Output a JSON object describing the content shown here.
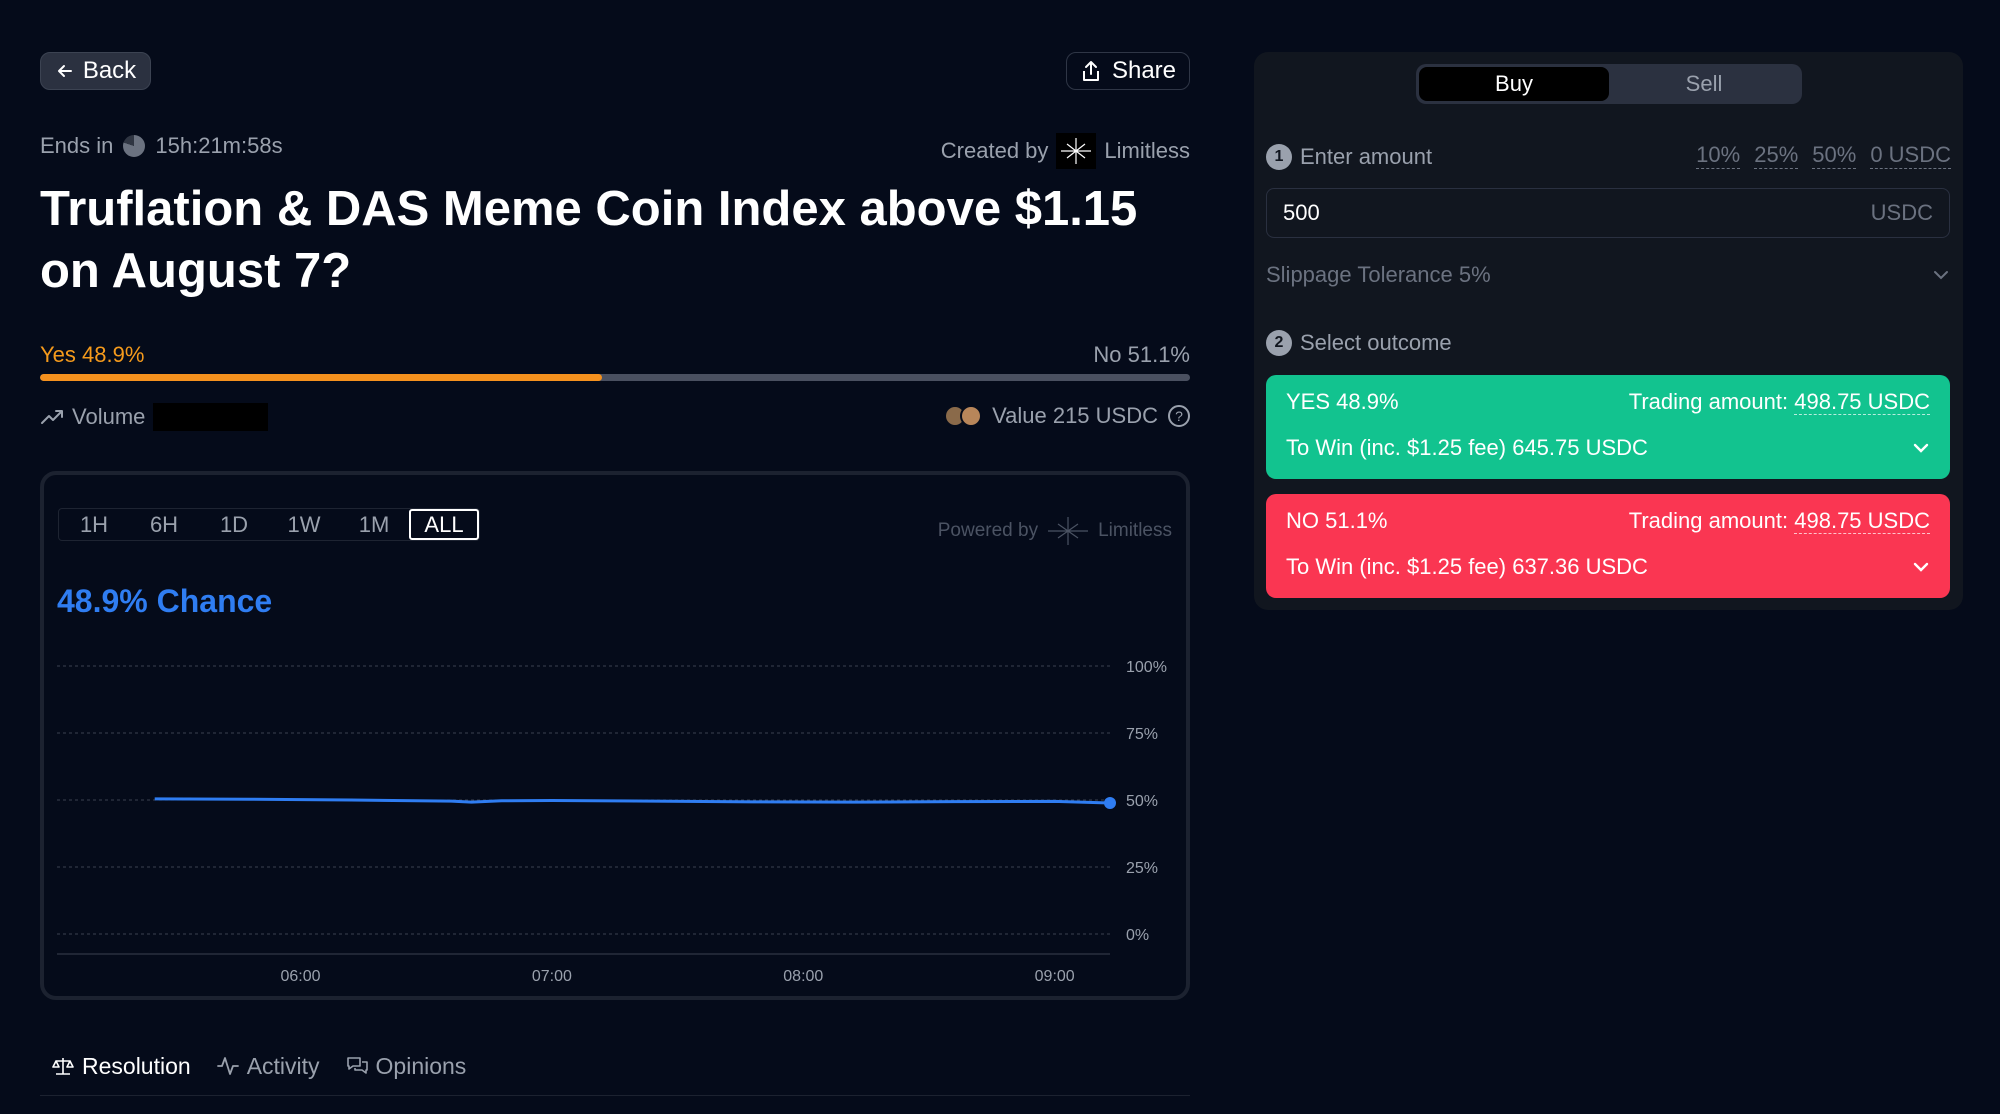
{
  "header": {
    "back_label": "Back",
    "share_label": "Share",
    "ends_in_label": "Ends in",
    "timer": "15h:21m:58s",
    "created_by_label": "Created by",
    "creator_name": "Limitless"
  },
  "market": {
    "title": "Truflation & DAS Meme Coin Index above $1.15 on August 7?",
    "yes_label": "Yes 48.9%",
    "no_label": "No 51.1%",
    "yes_probability": 48.9,
    "volume_label": "Volume",
    "value_label": "Value 215 USDC"
  },
  "chart": {
    "range_tabs": [
      "1H",
      "6H",
      "1D",
      "1W",
      "1M",
      "ALL"
    ],
    "active_range": "ALL",
    "powered_by_label": "Powered by",
    "powered_by_name": "Limitless",
    "chance_label": "48.9% Chance"
  },
  "chart_data": {
    "type": "line",
    "x_ticks": [
      "06:00",
      "07:00",
      "08:00",
      "09:00"
    ],
    "y_ticks": [
      "100%",
      "75%",
      "50%",
      "25%",
      "0%"
    ],
    "ylim": [
      0,
      100
    ],
    "grid": true,
    "series": [
      {
        "color": "#2f7df2",
        "points": [
          [
            5.42,
            50.4
          ],
          [
            5.8,
            50.3
          ],
          [
            6.2,
            50.0
          ],
          [
            6.6,
            49.6
          ],
          [
            6.68,
            49.2
          ],
          [
            6.8,
            49.7
          ],
          [
            7.0,
            49.8
          ],
          [
            7.4,
            49.6
          ],
          [
            7.8,
            49.3
          ],
          [
            8.2,
            49.2
          ],
          [
            8.6,
            49.4
          ],
          [
            9.0,
            49.5
          ],
          [
            9.22,
            48.9
          ]
        ]
      }
    ]
  },
  "tabs": [
    {
      "label": "Resolution",
      "icon": "scale-icon",
      "active": true
    },
    {
      "label": "Activity",
      "icon": "activity-icon",
      "active": false
    },
    {
      "label": "Opinions",
      "icon": "chat-icon",
      "active": false
    }
  ],
  "trade": {
    "buy_label": "Buy",
    "sell_label": "Sell",
    "step1_num": "1",
    "step1_label": "Enter amount",
    "quick_amounts": [
      "10%",
      "25%",
      "50%",
      "0 USDC"
    ],
    "amount_value": "500",
    "amount_unit": "USDC",
    "slippage_label": "Slippage Tolerance 5%",
    "step2_num": "2",
    "step2_label": "Select outcome",
    "yes": {
      "label": "YES 48.9%",
      "trading_label": "Trading amount:",
      "trading_value": "498.75 USDC",
      "win_label": "To Win (inc. $1.25 fee) 645.75 USDC"
    },
    "no": {
      "label": "NO 51.1%",
      "trading_label": "Trading amount:",
      "trading_value": "498.75 USDC",
      "win_label": "To Win (inc. $1.25 fee) 637.36 USDC"
    }
  },
  "colors": {
    "background": "#050b1a",
    "yes_orange": "#f5911e",
    "chance_blue": "#2f7df2",
    "yes_green": "#12c38f",
    "no_red": "#fa3652"
  }
}
